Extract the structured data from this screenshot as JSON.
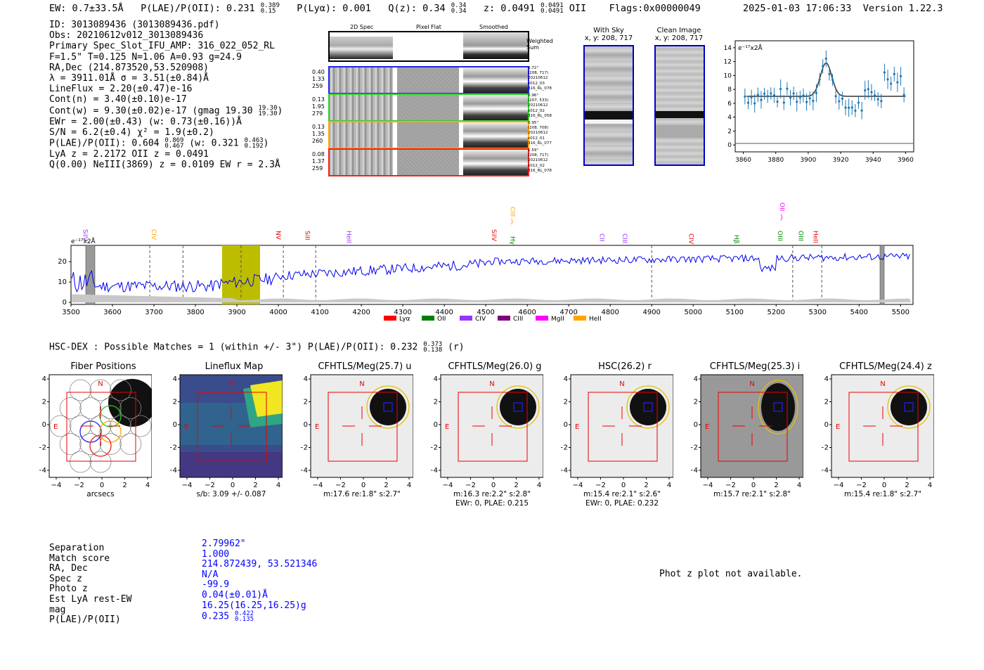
{
  "header": {
    "ew": "EW: 0.7±33.5Å",
    "plae_label": "P(LAE)/P(OII): 0.231",
    "plae_hi": "0.389",
    "plae_lo": "0.15",
    "plya": "P(Lyα): 0.001",
    "qz_label": "Q(z): 0.34",
    "qz_hi": "0.34",
    "qz_lo": "0.34",
    "z_label": "z: 0.0491",
    "z_hi": "0.0491",
    "z_lo": "0.0491",
    "z_line": "OII",
    "flags": "Flags:0x00000049",
    "datetime": "2025-01-03 17:06:33",
    "version": "Version 1.22.3"
  },
  "info": {
    "id": "ID: 3013089436 (3013089436.pdf)",
    "obs": "Obs: 20210612v012_3013089436",
    "primary": "Primary Spec_Slot_IFU_AMP: 316_022_052_RL",
    "params": "F=1.5\"  T=0.125  N=1.06  A=0.93  g=24.9",
    "radec": "RA,Dec (214.873520,53.520908)",
    "lambda": "λ = 3911.01Å   σ = 3.51(±0.84)Å",
    "lineflux": "LineFlux = 2.20(±0.47)e-16",
    "contn": "Cont(n) = 3.40(±0.10)e-17",
    "contw": "Cont(w) = 9.30(±0.02)e-17 (gmag 19.30",
    "contw_hi": "19.30",
    "contw_lo": "19.30",
    "ewr": "EWr = 2.00(±0.43) (w: 0.73(±0.16))Å",
    "sn": "S/N = 6.2(±0.4)  χ² = 1.9(±0.2)",
    "plae": "P(LAE)/P(OII): 0.604",
    "plae_hi": "0.869",
    "plae_lo": "0.467",
    "plae_w": "(w: 0.321",
    "plae_w_hi": "0.463",
    "plae_w_lo": "0.192",
    "lya": "LyA z = 2.2172  OII z = 0.0491",
    "q": "Q(0.00) NeIII(3869) z = 0.0109  EW r = 2.3Å"
  },
  "fiber_panel": {
    "col_titles": [
      "2D Spec",
      "Pixel Flat",
      "Smoothed"
    ],
    "weighted_sum": "Weighted Sum",
    "rows": [
      {
        "stats": [
          "0.40",
          "1.33",
          "259"
        ],
        "meta": [
          "0.72\"",
          "(208, 717)",
          "20210612",
          "v012_03",
          "316_RL_078"
        ],
        "color": "#2222ee"
      },
      {
        "stats": [
          "0.13",
          "1.95",
          "279"
        ],
        "meta": [
          "0.96\"",
          "(207, 533)",
          "20210612",
          "v012_02",
          "316_RL_058"
        ],
        "color": "#33cc33"
      },
      {
        "stats": [
          "0.13",
          "1.35",
          "260"
        ],
        "meta": [
          "0.95\"",
          "(208, 708)",
          "20210612",
          "v012_01",
          "316_RL_077"
        ],
        "color": "#ffa500"
      },
      {
        "stats": [
          "0.08",
          "1.37",
          "259"
        ],
        "meta": [
          "1.59\"",
          "(208, 717)",
          "20210612",
          "v012_02",
          "316_RL_078"
        ],
        "color": "#ee2222"
      }
    ]
  },
  "sky": {
    "with_sky_title": "With Sky",
    "with_sky_xy": "x, y: 208, 717",
    "clean_title": "Clean Image",
    "clean_xy": "x, y: 208, 717"
  },
  "mini_spectrum": {
    "unit": "e⁻¹⁷x2Å",
    "y_ticks": [
      "0",
      "2",
      "4",
      "6",
      "8",
      "10",
      "12",
      "14"
    ],
    "x_ticks": [
      "3860",
      "3880",
      "3900",
      "3920",
      "3940",
      "3960"
    ]
  },
  "full_spectrum": {
    "unit": "e⁻¹⁷x2Å",
    "x_ticks": [
      "3500",
      "3600",
      "3700",
      "3800",
      "3900",
      "4000",
      "4100",
      "4200",
      "4300",
      "4400",
      "4500",
      "4600",
      "4700",
      "4800",
      "4900",
      "5000",
      "5100",
      "5200",
      "5300",
      "5400",
      "5500"
    ],
    "y_ticks": [
      "0",
      "10",
      "20"
    ],
    "lines": [
      {
        "label": "SiIV",
        "color": "#9933ff"
      },
      {
        "label": "CIV",
        "color": "#ffa500"
      },
      {
        "label": "NV",
        "color": "#ee0000"
      },
      {
        "label": "SiII",
        "color": "#ee0000"
      },
      {
        "label": "HeII",
        "color": "#9933ff"
      },
      {
        "label": "SiIV",
        "color": "#ee0000"
      },
      {
        "label": "CIII",
        "color": "#ffa500"
      },
      {
        "label": "Hγ",
        "color": "#008800"
      },
      {
        "label": "CII",
        "color": "#9933ff"
      },
      {
        "label": "CIII",
        "color": "#9933ff"
      },
      {
        "label": "CIV",
        "color": "#ee0000"
      },
      {
        "label": "Hβ",
        "color": "#008800"
      },
      {
        "label": "OIII",
        "color": "#008800"
      },
      {
        "label": "OII",
        "color": "#ff00ff"
      },
      {
        "label": "OIII",
        "color": "#008800"
      },
      {
        "label": "HeII",
        "color": "#ee0000"
      }
    ],
    "legend": [
      {
        "label": "Lyα",
        "color": "#ff0000"
      },
      {
        "label": "OII",
        "color": "#008000"
      },
      {
        "label": "CIV",
        "color": "#9933ff"
      },
      {
        "label": "CIII",
        "color": "#800080"
      },
      {
        "label": "MgII",
        "color": "#ff00ff"
      },
      {
        "label": "HeII",
        "color": "#ffa500"
      }
    ]
  },
  "matches": {
    "line": "HSC-DEX : Possible Matches = 1 (within +/- 3\")  P(LAE)/P(OII): 0.232",
    "hi": "0.373",
    "lo": "0.138",
    "tail": "(r)"
  },
  "cutouts": {
    "ticks": [
      "−4",
      "−2",
      "0",
      "2",
      "4"
    ],
    "panels": [
      {
        "title": "Fiber Positions",
        "cap1": "arcsecs",
        "cap2": ""
      },
      {
        "title": "Lineflux Map",
        "cap1": "s/b: 3.09 +/- 0.087",
        "cap2": ""
      },
      {
        "title": "CFHTLS/Meg(25.7) u",
        "cap1": "m:17.6  re:1.8\"  s:2.7\"",
        "cap2": ""
      },
      {
        "title": "CFHTLS/Meg(26.0) g",
        "cap1": "m:16.3  re:2.2\"  s:2.8\"",
        "cap2": "EWr: 0, PLAE: 0.215"
      },
      {
        "title": "HSC(26.2) r",
        "cap1": "m:15.4  re:2.1\"  s:2.6\"",
        "cap2": "EWr: 0, PLAE: 0.232"
      },
      {
        "title": "CFHTLS/Meg(25.3) i",
        "cap1": "m:15.7  re:2.1\"  s:2.8\"",
        "cap2": ""
      },
      {
        "title": "CFHTLS/Meg(24.4) z",
        "cap1": "m:15.4  re:1.8\"  s:2.7\"",
        "cap2": ""
      }
    ],
    "north": "N",
    "east": "E"
  },
  "summary": {
    "labels": [
      "Separation",
      "Match score",
      "RA, Dec",
      "Spec z",
      "Photo z",
      "Est LyA rest-EW",
      "mag",
      "P(LAE)/P(OII)"
    ],
    "values": [
      "2.79962\"",
      "1.000",
      "214.872439, 53.521346",
      "N/A",
      "-99.9",
      "0.04(±0.01)Å",
      "16.25(16.25,16.25)g",
      "0.235"
    ],
    "plae_hi": "0.422",
    "plae_lo": "0.135",
    "photz_msg": "Phot z plot not available."
  }
}
